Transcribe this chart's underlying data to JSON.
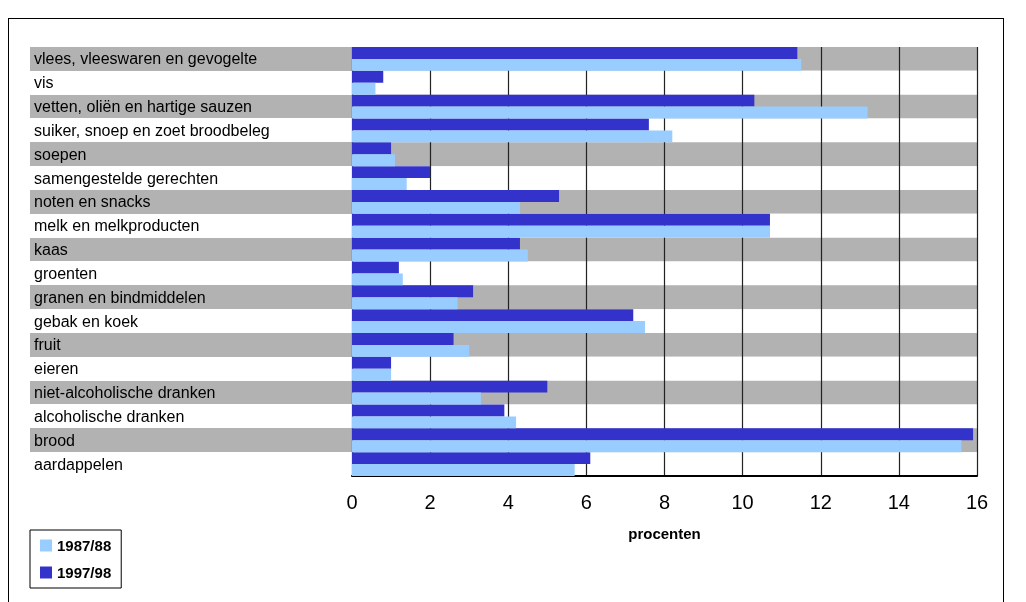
{
  "chart_data": {
    "type": "bar",
    "orientation": "horizontal",
    "xlabel": "procenten",
    "categories": [
      "vlees, vleeswaren en gevogelte",
      "vis",
      "vetten, oliën en hartige sauzen",
      "suiker, snoep en zoet broodbeleg",
      "soepen",
      "samengestelde gerechten",
      "noten en snacks",
      "melk en melkproducten",
      "kaas",
      "groenten",
      "granen en bindmiddelen",
      "gebak en koek",
      "fruit",
      "eieren",
      "niet-alcoholische dranken",
      "alcoholische dranken",
      "brood",
      "aardappelen"
    ],
    "series": [
      {
        "name": "1987/88",
        "color": "#99ccff",
        "values": [
          11.5,
          0.6,
          13.2,
          8.2,
          1.1,
          1.4,
          4.3,
          10.7,
          4.5,
          1.3,
          2.7,
          7.5,
          3.0,
          1.0,
          3.3,
          4.2,
          15.6,
          5.7
        ]
      },
      {
        "name": "1997/98",
        "color": "#3333cc",
        "values": [
          11.4,
          0.8,
          10.3,
          7.6,
          1.0,
          2.0,
          5.3,
          10.7,
          4.3,
          1.2,
          3.1,
          7.2,
          2.6,
          1.0,
          5.0,
          3.9,
          15.9,
          6.1
        ]
      }
    ],
    "xlim": [
      0,
      16
    ],
    "xticks": [
      0,
      2,
      4,
      6,
      8,
      10,
      12,
      14,
      16
    ],
    "grid": "x",
    "legend": "bottom left"
  }
}
